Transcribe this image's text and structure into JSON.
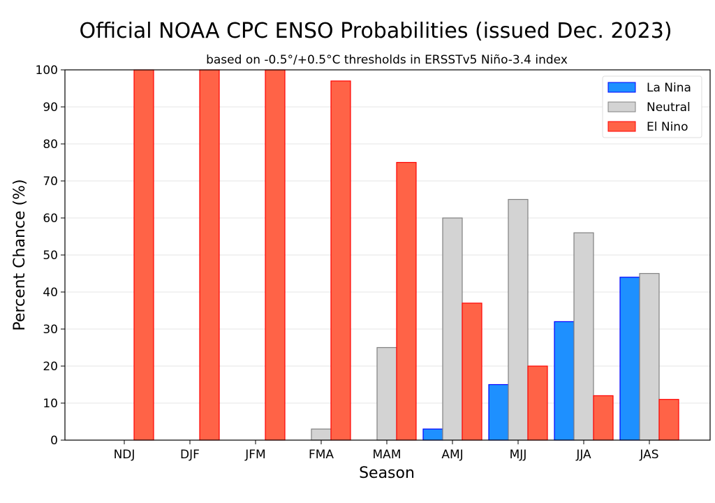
{
  "chart_data": {
    "type": "bar",
    "title": "Official NOAA CPC ENSO Probabilities (issued Dec. 2023)",
    "subtitle": "based on -0.5°/+0.5°C thresholds in ERSSTv5 Niño-3.4 index",
    "xlabel": "Season",
    "ylabel": "Percent Chance (%)",
    "ylim": [
      0,
      100
    ],
    "yticks": [
      0,
      10,
      20,
      30,
      40,
      50,
      60,
      70,
      80,
      90,
      100
    ],
    "grid": "horizontal",
    "legend_position": "top-right",
    "categories": [
      "NDJ",
      "DJF",
      "JFM",
      "FMA",
      "MAM",
      "AMJ",
      "MJJ",
      "JJA",
      "JAS"
    ],
    "series": [
      {
        "name": "La Nina",
        "color": "#1E90FF",
        "edge": "#0000FF",
        "values": [
          0,
          0,
          0,
          0,
          0,
          3,
          15,
          32,
          44
        ]
      },
      {
        "name": "Neutral",
        "color": "#D3D3D3",
        "edge": "#808080",
        "values": [
          0,
          0,
          0,
          3,
          25,
          60,
          65,
          56,
          45
        ]
      },
      {
        "name": "El Nino",
        "color": "#FF6347",
        "edge": "#FF0000",
        "values": [
          100,
          100,
          100,
          97,
          75,
          37,
          20,
          12,
          11
        ]
      }
    ]
  }
}
